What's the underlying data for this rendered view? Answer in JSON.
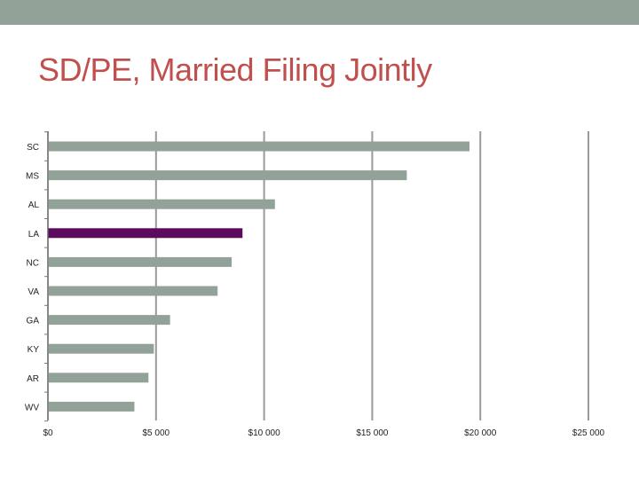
{
  "slide": {
    "title": "SD/PE, Married Filing Jointly",
    "top_bar_color": "#93a299"
  },
  "chart_data": {
    "type": "bar",
    "orientation": "horizontal",
    "title": "",
    "xlabel": "",
    "ylabel": "",
    "categories": [
      "SC",
      "MS",
      "AL",
      "LA",
      "NC",
      "VA",
      "GA",
      "KY",
      "AR",
      "WV"
    ],
    "values": [
      19500,
      16600,
      10500,
      9000,
      8500,
      7850,
      5650,
      4900,
      4650,
      4000
    ],
    "xlim": [
      0,
      25000
    ],
    "xticks": [
      "$0",
      "$5 000",
      "$10 000",
      "$15 000",
      "$20 000",
      "$25 000"
    ],
    "grid": true,
    "bar_color": "#93a299",
    "highlight": {
      "category": "LA",
      "color": "#5c0a5e"
    }
  }
}
